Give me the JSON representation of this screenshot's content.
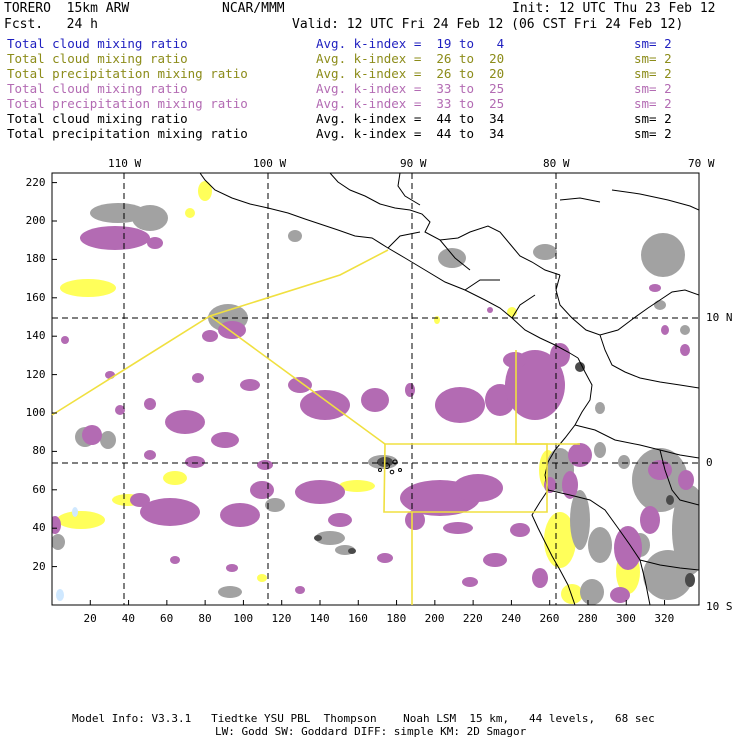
{
  "header": {
    "model": "TORERO  15km ARW",
    "org": "NCAR/MMM",
    "init": "Init: 12 UTC Thu 23 Feb 12",
    "fcst": "Fcst.   24 h",
    "valid": "Valid: 12 UTC Fri 24 Feb 12 (06 CST Fri 24 Feb 12)"
  },
  "legend": [
    {
      "field": "Total cloud mixing ratio",
      "kindex": "Avg. k-index =  19 to   4",
      "sm": "sm= 2",
      "color": "#1f1fbf"
    },
    {
      "field": "Total cloud mixing ratio",
      "kindex": "Avg. k-index =  26 to  20",
      "sm": "sm= 2",
      "color": "#8c8c1a"
    },
    {
      "field": "Total precipitation mixing ratio",
      "kindex": "Avg. k-index =  26 to  20",
      "sm": "sm= 2",
      "color": "#8c8c1a"
    },
    {
      "field": "Total cloud mixing ratio",
      "kindex": "Avg. k-index =  33 to  25",
      "sm": "sm= 2",
      "color": "#b36bb3"
    },
    {
      "field": "Total precipitation mixing ratio",
      "kindex": "Avg. k-index =  33 to  25",
      "sm": "sm= 2",
      "color": "#b36bb3"
    },
    {
      "field": "Total cloud mixing ratio",
      "kindex": "Avg. k-index =  44 to  34",
      "sm": "sm= 2",
      "color": "#000000"
    },
    {
      "field": "Total precipitation mixing ratio",
      "kindex": "Avg. k-index =  44 to  34",
      "sm": "sm= 2",
      "color": "#000000"
    }
  ],
  "axes": {
    "lon_labels": [
      "110 W",
      "100 W",
      "90 W",
      "80 W",
      "70 W"
    ],
    "lat_labels": [
      "10 N",
      "0",
      "10 S"
    ],
    "x_ticks": [
      "20",
      "40",
      "60",
      "80",
      "100",
      "120",
      "140",
      "160",
      "180",
      "200",
      "220",
      "240",
      "260",
      "280",
      "300",
      "320"
    ],
    "y_ticks": [
      "220",
      "200",
      "180",
      "160",
      "140",
      "120",
      "100",
      "80",
      "60",
      "40",
      "20"
    ],
    "x_range": [
      0,
      338
    ],
    "y_range": [
      0,
      225
    ]
  },
  "colors": {
    "purple": "#b36bb3",
    "gray": "#a0a0a0",
    "yellow": "#ffff5a",
    "track": "#f0e040",
    "coast": "#000000"
  },
  "footer": {
    "line1": "Model Info: V3.3.1   Tiedtke YSU PBL  Thompson    Noah LSM  15 km,   44 levels,   68 sec",
    "line2": "LW: Godd SW: Goddard DIFF: simple KM: 2D Smagor"
  }
}
